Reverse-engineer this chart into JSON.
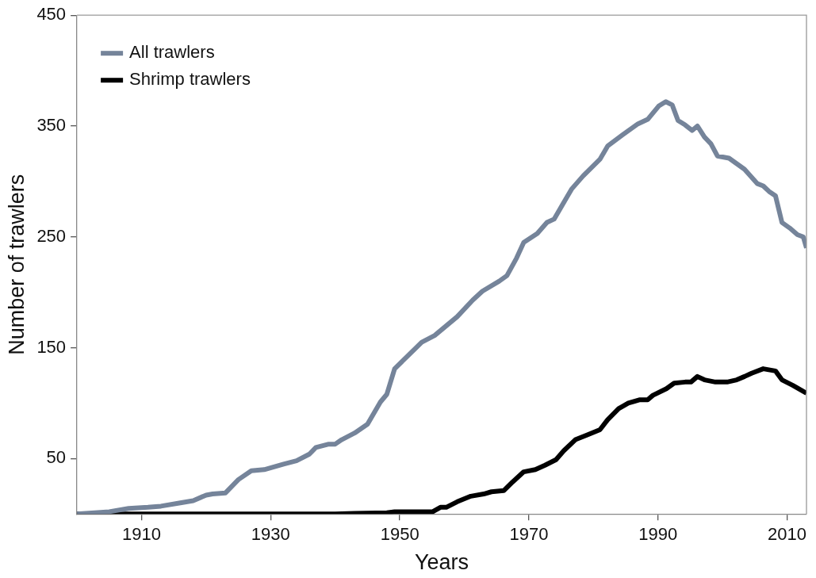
{
  "chart_data": {
    "type": "line",
    "xlabel": "Years",
    "ylabel": "Number of trawlers",
    "xlim": [
      1900,
      2013
    ],
    "xticks": [
      1910,
      1930,
      1950,
      1970,
      1990,
      2010
    ],
    "ylim": [
      0,
      450
    ],
    "yticks": [
      50,
      150,
      250,
      350,
      450
    ],
    "grid": false,
    "legend": "top left",
    "marker": "none",
    "line_style": "solid",
    "series": [
      {
        "name": "All trawlers",
        "color": "#75849a",
        "x": [
          1900,
          1905,
          1908,
          1911,
          1913,
          1916,
          1918,
          1920,
          1921,
          1923,
          1925,
          1927,
          1929,
          1932,
          1934,
          1936,
          1937,
          1939,
          1940,
          1941,
          1943,
          1945,
          1947,
          1948,
          1949.2,
          1951.3,
          1953.4,
          1955.4,
          1958.9,
          1961.3,
          1962.8,
          1965.4,
          1966.6,
          1968.1,
          1969.2,
          1971.3,
          1972.8,
          1973.9,
          1976.6,
          1978.4,
          1981,
          1982.2,
          1984.5,
          1986.9,
          1988.4,
          1990.1,
          1991.2,
          1992.2,
          1993.1,
          1994.2,
          1995.3,
          1996.1,
          1997.2,
          1998.2,
          1999.2,
          2001,
          2002.2,
          2003.4,
          2005.4,
          2006.3,
          2007.2,
          2008.2,
          2009.2,
          2010.4,
          2011.6,
          2012.5,
          2013
        ],
        "values": [
          0,
          2,
          5,
          6,
          7,
          10,
          12,
          17,
          18,
          19,
          31,
          39,
          40,
          45,
          48,
          54,
          60,
          63,
          63,
          67,
          73,
          81,
          101,
          108,
          131,
          143,
          155,
          161,
          178,
          193,
          201,
          210,
          215,
          231,
          245,
          253,
          263,
          266,
          293,
          305,
          320,
          332,
          342,
          352,
          356,
          368,
          372,
          369,
          355,
          351,
          346,
          350,
          340,
          334,
          323,
          321,
          316,
          311,
          298,
          296,
          291,
          287,
          263,
          258,
          252,
          250,
          240
        ]
      },
      {
        "name": "Shrimp trawlers",
        "color": "#000000",
        "x": [
          1900,
          1940,
          1943,
          1948,
          1949.2,
          1955.1,
          1956.3,
          1957.2,
          1958.9,
          1961,
          1963,
          1964.2,
          1966.1,
          1967.5,
          1969.2,
          1971,
          1972.5,
          1974.2,
          1975.4,
          1977.2,
          1978.9,
          1981,
          1982.2,
          1983.9,
          1985.4,
          1987.2,
          1988.4,
          1989.2,
          1991.3,
          1992.5,
          1994.2,
          1995.1,
          1996.1,
          1997.2,
          1998.9,
          2000.7,
          2002.2,
          2003.4,
          2004.5,
          2006.3,
          2008.2,
          2009.2,
          2010.9,
          2013
        ],
        "values": [
          0,
          0,
          0.5,
          1,
          2,
          2,
          6,
          6,
          11,
          16,
          18,
          20,
          21,
          29,
          38,
          40,
          44,
          49,
          57,
          67,
          71,
          76,
          85,
          95,
          100,
          103,
          103,
          107,
          113,
          118,
          119,
          119,
          124,
          121,
          119,
          119,
          121,
          124,
          127,
          131,
          129,
          121,
          116,
          109
        ]
      }
    ]
  }
}
